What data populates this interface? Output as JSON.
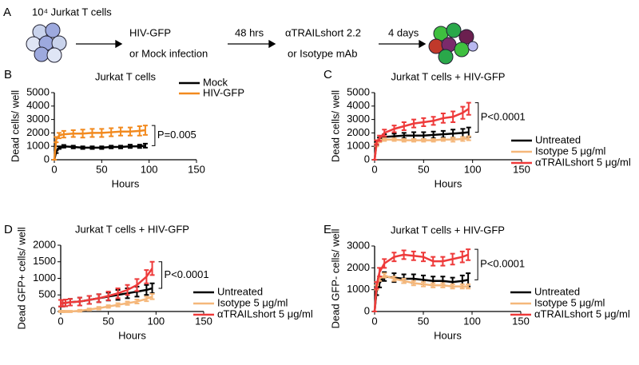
{
  "schematic": {
    "panel": "A",
    "start": "10⁴ Jurkat T cells",
    "step1_top": "HIV-GFP",
    "step1_bottom": "or Mock infection",
    "wait1": "48 hrs",
    "step2_top": "αTRAILshort 2.2",
    "step2_bottom": "or Isotype mAb",
    "wait2": "4 days"
  },
  "chart_data": [
    {
      "type": "line",
      "panel": "B",
      "title": "Jurkat T cells",
      "xlabel": "Hours",
      "ylabel": "Dead cells/ well",
      "annotation": "P=0.005",
      "legend": "top-right",
      "x": [
        0,
        2,
        5,
        10,
        20,
        30,
        40,
        50,
        60,
        70,
        80,
        90,
        96
      ],
      "xlim": [
        0,
        150
      ],
      "xticks": [
        0,
        50,
        100,
        150
      ],
      "ylim": [
        0,
        5000
      ],
      "yticks": [
        0,
        1000,
        2000,
        3000,
        4000,
        5000
      ],
      "series": [
        {
          "name": "Mock",
          "color": "#000000",
          "values": [
            0,
            600,
            900,
            1000,
            950,
            900,
            900,
            900,
            950,
            950,
            1000,
            1000,
            1050
          ],
          "errors": [
            0,
            100,
            100,
            100,
            100,
            100,
            100,
            100,
            100,
            100,
            120,
            120,
            150
          ]
        },
        {
          "name": "HIV-GFP",
          "color": "#f28a1f",
          "values": [
            0,
            1500,
            1800,
            1900,
            1950,
            1950,
            2000,
            2000,
            2050,
            2100,
            2100,
            2150,
            2200
          ],
          "errors": [
            0,
            200,
            200,
            250,
            250,
            300,
            300,
            300,
            300,
            300,
            300,
            350,
            350
          ]
        }
      ]
    },
    {
      "type": "line",
      "panel": "C",
      "title": "Jurkat T cells + HIV-GFP",
      "xlabel": "Hours",
      "ylabel": "Dead cells/ well",
      "annotation": "P<0.0001",
      "legend": "right",
      "x": [
        0,
        2,
        5,
        10,
        20,
        30,
        40,
        50,
        60,
        70,
        80,
        90,
        96
      ],
      "xlim": [
        0,
        150
      ],
      "xticks": [
        0,
        50,
        100,
        150
      ],
      "ylim": [
        0,
        5000
      ],
      "yticks": [
        0,
        1000,
        2000,
        3000,
        4000,
        5000
      ],
      "series": [
        {
          "name": "Untreated",
          "color": "#000000",
          "values": [
            0,
            1200,
            1500,
            1700,
            1750,
            1800,
            1800,
            1800,
            1850,
            1900,
            1950,
            2000,
            2050
          ],
          "errors": [
            0,
            150,
            150,
            200,
            200,
            200,
            250,
            250,
            250,
            250,
            300,
            300,
            350
          ]
        },
        {
          "name": "Isotype 5 μg/ml",
          "color": "#f5b77a",
          "values": [
            0,
            1100,
            1400,
            1500,
            1500,
            1450,
            1450,
            1450,
            1450,
            1500,
            1500,
            1550,
            1600
          ],
          "errors": [
            0,
            100,
            100,
            100,
            100,
            100,
            100,
            100,
            100,
            100,
            150,
            150,
            150
          ]
        },
        {
          "name": "αTRAILshort 5 μg/ml",
          "color": "#ee3a3a",
          "values": [
            0,
            1300,
            1600,
            2000,
            2300,
            2500,
            2700,
            2800,
            2900,
            3100,
            3200,
            3500,
            3800
          ],
          "errors": [
            0,
            150,
            200,
            250,
            250,
            300,
            300,
            300,
            300,
            350,
            400,
            450,
            450
          ]
        }
      ]
    },
    {
      "type": "line",
      "panel": "D",
      "title": "Jurkat T cells + HIV-GFP",
      "xlabel": "Hours",
      "ylabel": "Dead GFP+ cells/ well",
      "annotation": "P<0.0001",
      "legend": "right",
      "x": [
        0,
        2,
        5,
        10,
        20,
        30,
        40,
        50,
        60,
        70,
        80,
        90,
        96
      ],
      "xlim": [
        0,
        150
      ],
      "xticks": [
        0,
        50,
        100,
        150
      ],
      "ylim": [
        0,
        2000
      ],
      "yticks": [
        0,
        500,
        1000,
        1500,
        2000
      ],
      "series": [
        {
          "name": "Untreated",
          "color": "#000000",
          "values": [
            250,
            250,
            260,
            280,
            300,
            350,
            400,
            450,
            500,
            550,
            600,
            650,
            700
          ],
          "errors": [
            100,
            100,
            100,
            100,
            120,
            120,
            120,
            120,
            150,
            150,
            150,
            150,
            150
          ]
        },
        {
          "name": "Isotype 5 μg/ml",
          "color": "#f5b77a",
          "values": [
            0,
            0,
            0,
            0,
            20,
            60,
            100,
            150,
            200,
            250,
            300,
            380,
            450
          ],
          "errors": [
            20,
            20,
            20,
            20,
            30,
            30,
            40,
            40,
            50,
            50,
            60,
            70,
            80
          ]
        },
        {
          "name": "αTRAILshort 5 μg/ml",
          "color": "#ee3a3a",
          "values": [
            250,
            250,
            260,
            280,
            300,
            350,
            400,
            470,
            550,
            650,
            800,
            1050,
            1300
          ],
          "errors": [
            100,
            100,
            100,
            100,
            120,
            120,
            120,
            130,
            150,
            150,
            180,
            200,
            200
          ]
        }
      ]
    },
    {
      "type": "line",
      "panel": "E",
      "title": "Jurkat T cells + HIV-GFP",
      "xlabel": "Hours",
      "ylabel": "Dead GFP- cells/ well",
      "annotation": "P<0.0001",
      "legend": "right",
      "x": [
        0,
        2,
        5,
        10,
        20,
        30,
        40,
        50,
        60,
        70,
        80,
        90,
        96
      ],
      "xlim": [
        0,
        150
      ],
      "xticks": [
        0,
        50,
        100,
        150
      ],
      "ylim": [
        0,
        3000
      ],
      "yticks": [
        0,
        1000,
        2000,
        3000
      ],
      "series": [
        {
          "name": "Untreated",
          "color": "#000000",
          "values": [
            0,
            900,
            1300,
            1600,
            1550,
            1500,
            1500,
            1450,
            1400,
            1400,
            1350,
            1400,
            1450
          ],
          "errors": [
            0,
            150,
            200,
            200,
            200,
            200,
            200,
            200,
            200,
            200,
            200,
            250,
            300
          ]
        },
        {
          "name": "Isotype 5 μg/ml",
          "color": "#f5b77a",
          "values": [
            0,
            1100,
            1500,
            1650,
            1500,
            1400,
            1300,
            1250,
            1200,
            1200,
            1150,
            1150,
            1150
          ],
          "errors": [
            0,
            100,
            100,
            100,
            100,
            100,
            100,
            100,
            100,
            100,
            100,
            100,
            100
          ]
        },
        {
          "name": "αTRAILshort 5 μg/ml",
          "color": "#ee3a3a",
          "values": [
            0,
            1200,
            1800,
            2200,
            2500,
            2600,
            2550,
            2500,
            2300,
            2300,
            2400,
            2500,
            2600
          ],
          "errors": [
            0,
            150,
            200,
            200,
            200,
            200,
            200,
            200,
            200,
            200,
            250,
            250,
            250
          ]
        }
      ]
    }
  ]
}
